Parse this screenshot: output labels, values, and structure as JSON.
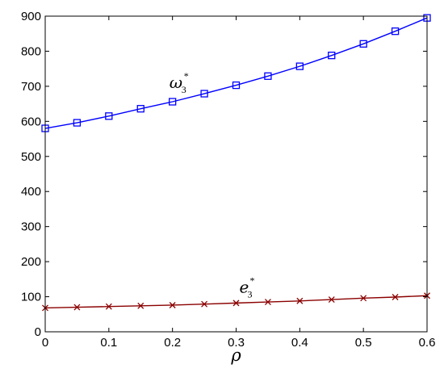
{
  "chart_data": {
    "type": "line",
    "title": "",
    "xlabel": "ρ",
    "ylabel": "",
    "xlim": [
      0,
      0.6
    ],
    "ylim": [
      0,
      900
    ],
    "grid": false,
    "x": [
      0,
      0.05,
      0.1,
      0.15,
      0.2,
      0.25,
      0.3,
      0.35,
      0.4,
      0.45,
      0.5,
      0.55,
      0.6
    ],
    "xticks": [
      "0",
      "0.1",
      "0.2",
      "0.3",
      "0.4",
      "0.5",
      "0.6"
    ],
    "yticks": [
      "0",
      "100",
      "200",
      "300",
      "400",
      "500",
      "600",
      "700",
      "800",
      "900"
    ],
    "series": [
      {
        "name": "ω3*",
        "color": "#0000ff",
        "marker": "square",
        "values": [
          580,
          596,
          615,
          636,
          656,
          679,
          703,
          729,
          757,
          788,
          821,
          857,
          895
        ]
      },
      {
        "name": "e3*",
        "color": "#8b0000",
        "marker": "x",
        "values": [
          68,
          70,
          72,
          74,
          76,
          79,
          82,
          85,
          88,
          92,
          96,
          99,
          103
        ]
      }
    ],
    "annotations": [
      {
        "main": "ω",
        "sub": "3",
        "sup": "*",
        "x": 0.195,
        "y": 695
      },
      {
        "main": "e",
        "sub": "3",
        "sup": "*",
        "x": 0.305,
        "y": 112
      }
    ]
  }
}
